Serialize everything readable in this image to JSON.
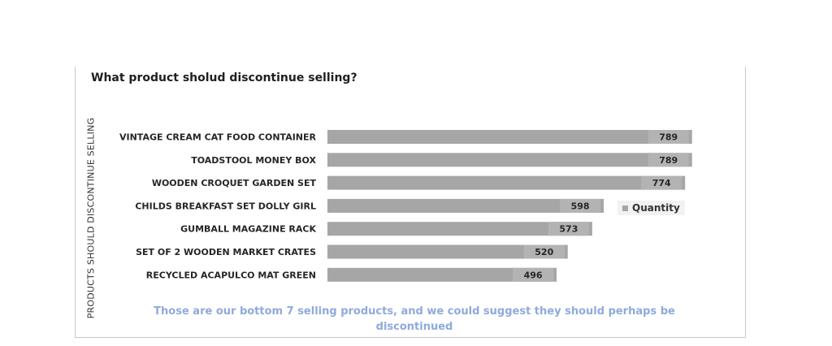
{
  "chart_data": {
    "type": "bar",
    "orientation": "horizontal",
    "title": "What product sholud discontinue selling?",
    "ylabel": "PRODUCTS SHOULD DISCONTINUE SELLING",
    "xlabel": "",
    "categories": [
      "VINTAGE CREAM CAT FOOD CONTAINER",
      "TOADSTOOL MONEY BOX",
      "WOODEN CROQUET GARDEN SET",
      "CHILDS BREAKFAST SET DOLLY GIRL",
      "GUMBALL MAGAZINE RACK",
      "SET OF 2 WOODEN MARKET CRATES",
      "RECYCLED ACAPULCO MAT GREEN"
    ],
    "series": [
      {
        "name": "Quantity",
        "values": [
          789,
          789,
          774,
          598,
          573,
          520,
          496
        ]
      }
    ],
    "xlim": [
      0,
      800
    ],
    "grid": false,
    "legend_position": "right",
    "bar_color": "#a6a6a6",
    "label_bg_color": "#b3b3b3"
  },
  "footnote": "Those are our bottom 7 selling products, and we could suggest they should perhaps be discontinued"
}
